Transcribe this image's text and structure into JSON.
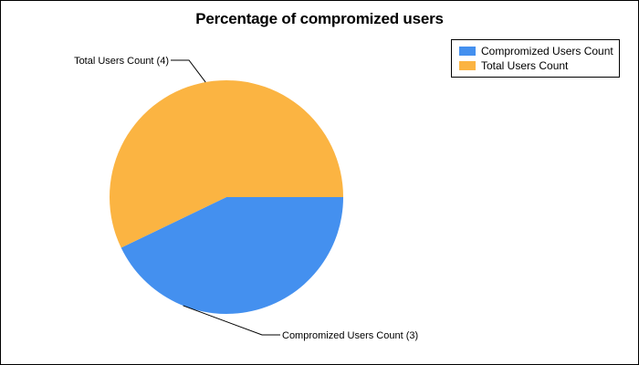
{
  "chart_data": {
    "type": "pie",
    "title": "Percentage of compromized users",
    "categories": [
      "Compromized Users Count",
      "Total Users Count"
    ],
    "values": [
      3,
      4
    ],
    "data_labels": [
      "Compromized Users Count (3)",
      "Total Users Count (4)"
    ],
    "colors": [
      "#4490ef",
      "#fbb442"
    ],
    "legend_placement": "top-right",
    "start_angle_deg": 0,
    "direction": "clockwise"
  }
}
